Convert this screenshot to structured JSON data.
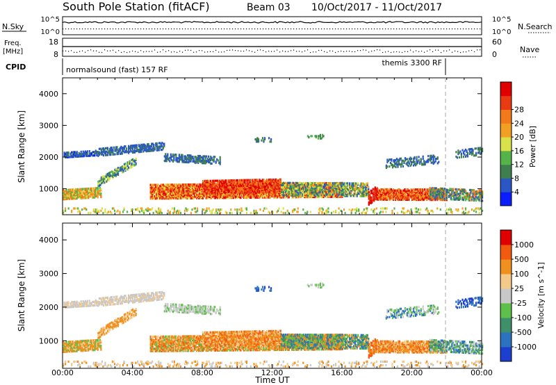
{
  "header": {
    "station": "South Pole Station (fitACF)",
    "beam": "Beam 03",
    "dates": "10/Oct/2017 - 11/Oct/2017"
  },
  "small_panels": {
    "nsky_label": "N.Sky",
    "nsearch_label": "N.Search",
    "freq_label_top": "Freq.",
    "freq_label_unit": "[MHz]",
    "nave_label": "Nave",
    "cpid_label": "CPID",
    "nsky_ticks": [
      "10^5",
      "10^0"
    ],
    "nsearch_ticks": [
      "10^5",
      "10^0"
    ],
    "freq_ticks": [
      "18",
      "8"
    ],
    "nave_ticks": [
      "60",
      "0"
    ]
  },
  "cpid": {
    "segments": [
      {
        "label": "normalsound (fast) 157 RF",
        "start_hour": 0
      },
      {
        "label": "themis 3300 RF",
        "start_hour": 22.0
      }
    ]
  },
  "chart_data": [
    {
      "type": "heatmap",
      "name": "power",
      "ylabel": "Slant Range [km]",
      "xlabel": "Time UT",
      "x_ticks": [
        "00:00",
        "04:00",
        "08:00",
        "12:00",
        "16:00",
        "20:00",
        "00:00"
      ],
      "xlim_hours": [
        0,
        24
      ],
      "y_ticks": [
        1000,
        2000,
        3000,
        4000
      ],
      "ylim": [
        180,
        4500
      ],
      "colorbar": {
        "label": "Power [dB]",
        "ticks": [
          "4",
          "8",
          "12",
          "16",
          "20",
          "24",
          "28"
        ],
        "colors": [
          "#0a1dff",
          "#2a56c6",
          "#3f7f4f",
          "#55b34a",
          "#d8e04a",
          "#f2a024",
          "#f27a1a",
          "#ea3a12",
          "#e00000"
        ]
      }
    },
    {
      "type": "heatmap",
      "name": "velocity",
      "ylabel": "Slant Range [km]",
      "xlabel": "Time UT",
      "x_ticks": [
        "00:00",
        "04:00",
        "08:00",
        "12:00",
        "16:00",
        "20:00",
        "00:00"
      ],
      "xlim_hours": [
        0,
        24
      ],
      "y_ticks": [
        1000,
        2000,
        3000,
        4000
      ],
      "ylim": [
        180,
        4500
      ],
      "colorbar": {
        "label": "Velocity [m s^-1]",
        "ticks": [
          "1000",
          "500",
          "100",
          "25",
          "-25",
          "-100",
          "-500",
          "-1000"
        ],
        "colors": [
          "#1c3fd0",
          "#2c72c0",
          "#3f8f6a",
          "#5cc04a",
          "#c8c8c8",
          "#f3c98a",
          "#f0901e",
          "#f25a10",
          "#e00000"
        ]
      }
    }
  ],
  "xlabel": "Time UT"
}
